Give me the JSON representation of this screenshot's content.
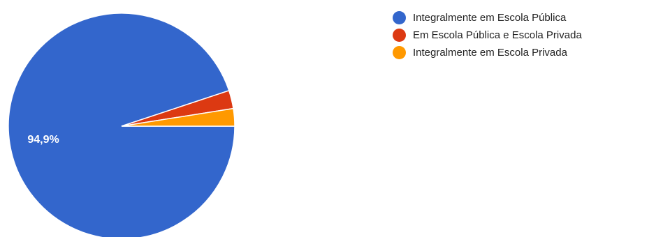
{
  "chart_data": {
    "type": "pie",
    "title": "",
    "categories": [
      "Integralmente em Escola Pública",
      "Em Escola Pública e Escola Privada",
      "Integralmente em Escola Privada"
    ],
    "values": [
      94.9,
      2.6,
      2.5
    ],
    "unit": "%",
    "colors": [
      "#3366cc",
      "#dc3912",
      "#ff9900"
    ],
    "data_labels": [
      "94,9%",
      "",
      ""
    ],
    "legend_position": "right",
    "start_angle": "3 o'clock, clockwise"
  },
  "legend": {
    "items": [
      {
        "label": "Integralmente em Escola Pública",
        "color": "#3366cc"
      },
      {
        "label": "Em Escola Pública e Escola Privada",
        "color": "#dc3912"
      },
      {
        "label": "Integralmente em Escola Privada",
        "color": "#ff9900"
      }
    ]
  }
}
